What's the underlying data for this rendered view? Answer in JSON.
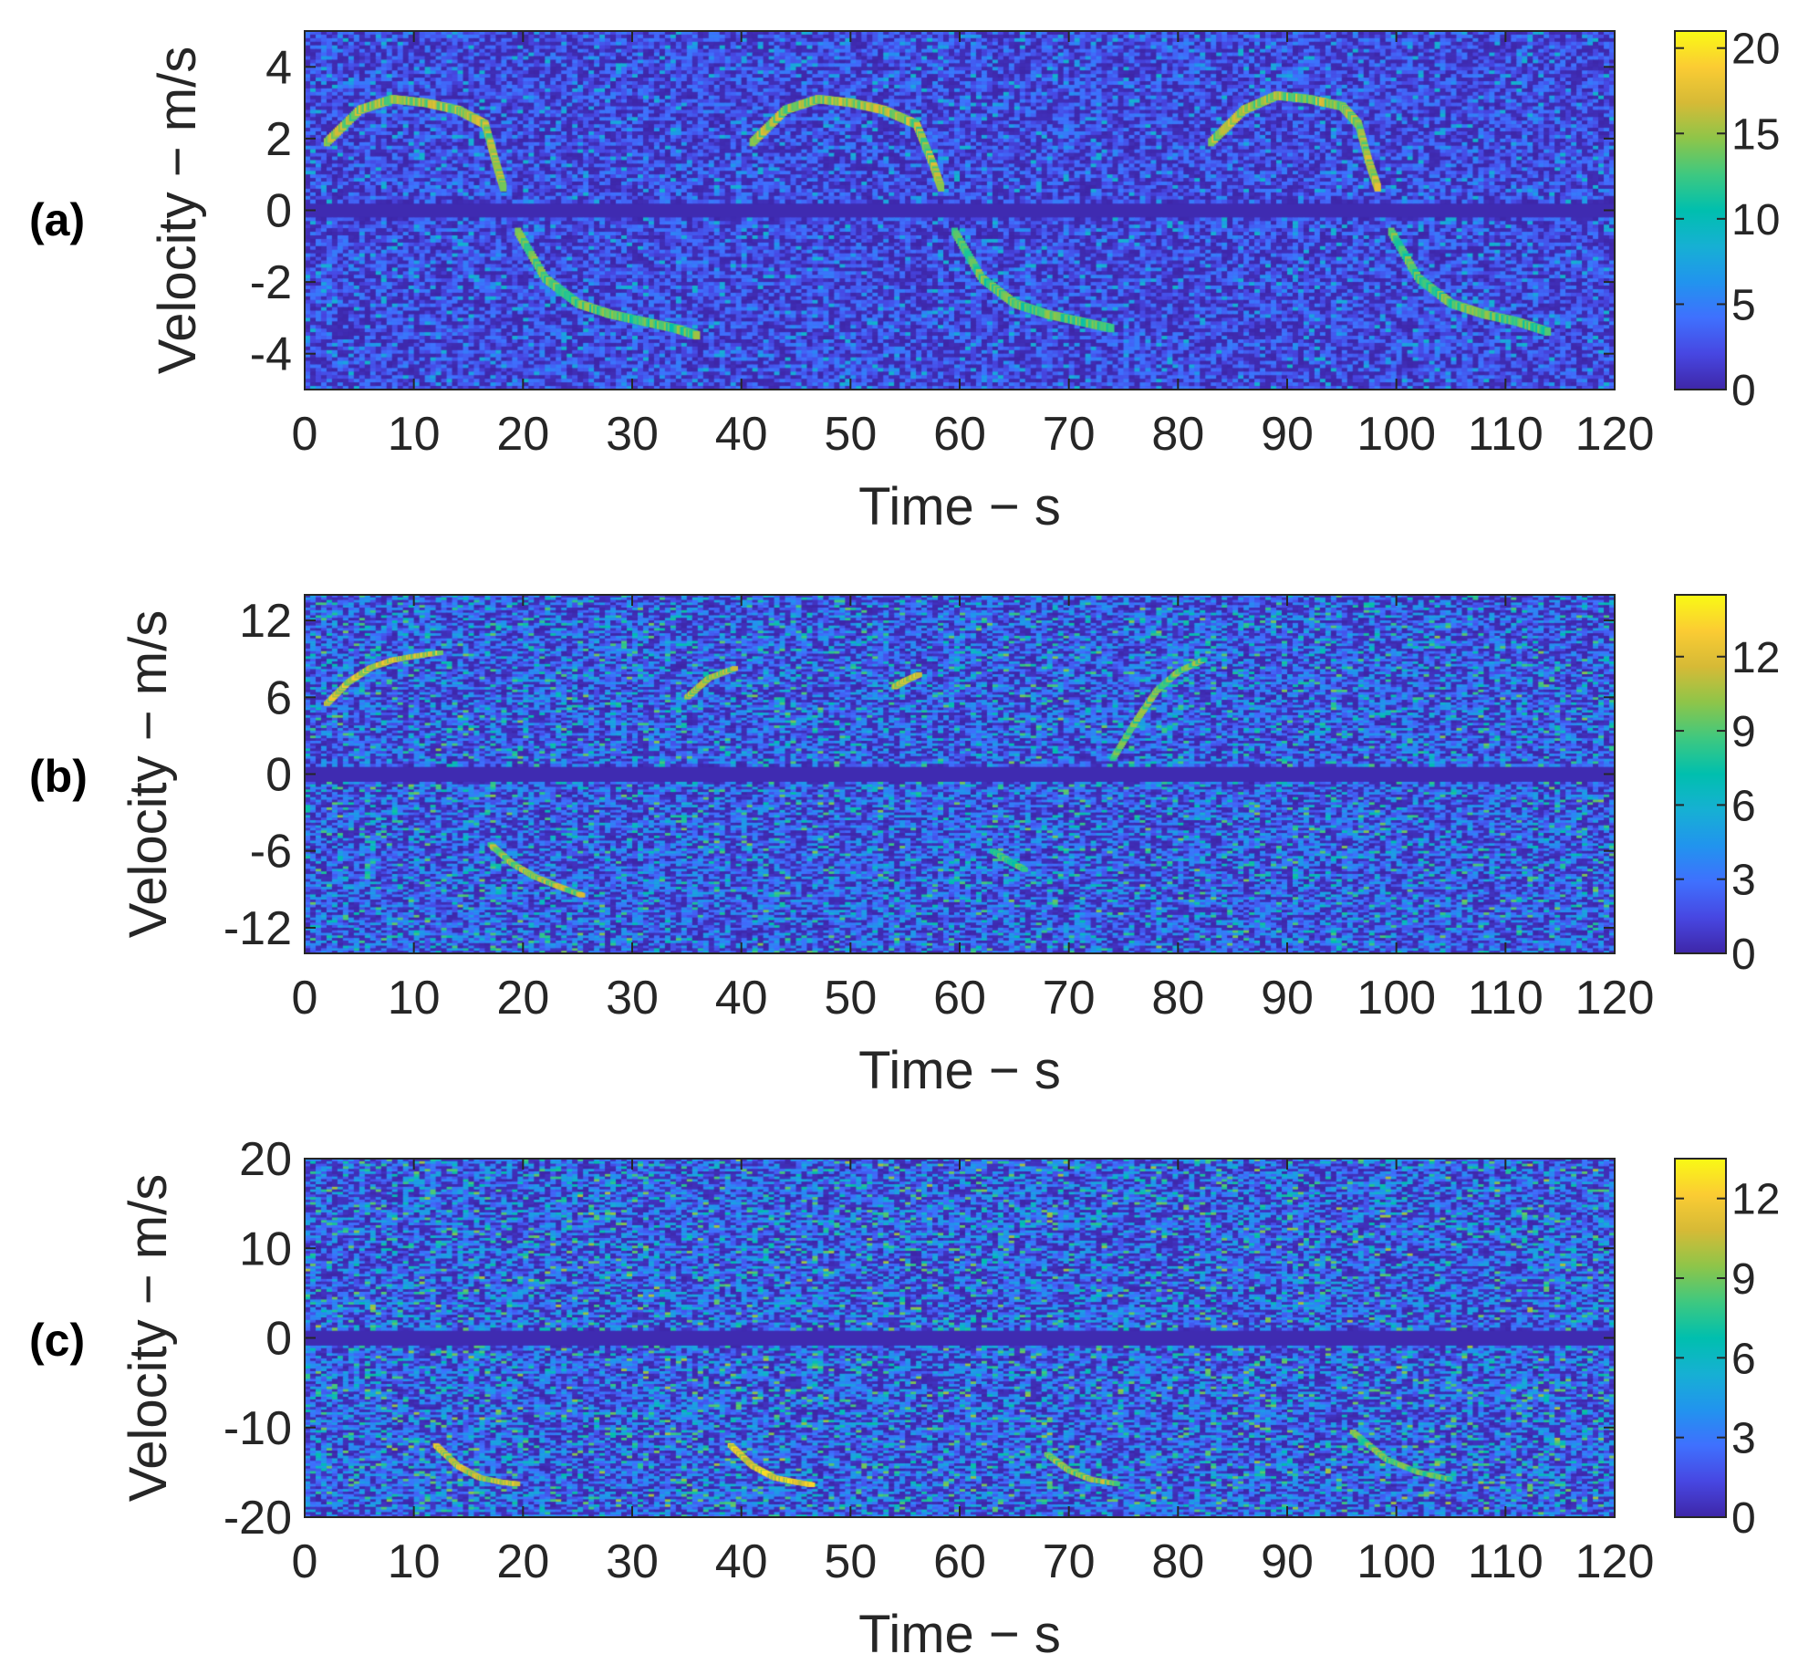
{
  "chart_data": [
    {
      "type": "heatmap",
      "panel_label": "(a)",
      "xlabel": "Time − s",
      "ylabel": "Velocity − m/s",
      "xlim": [
        0,
        120
      ],
      "ylim": [
        -5,
        5
      ],
      "xticks": [
        0,
        10,
        20,
        30,
        40,
        50,
        60,
        70,
        80,
        90,
        100,
        110,
        120
      ],
      "yticks": [
        -4,
        -2,
        0,
        2,
        4
      ],
      "colorbar": {
        "lim": [
          0,
          21
        ],
        "ticks": [
          0,
          5,
          10,
          15,
          20
        ]
      },
      "signal_tracks": [
        {
          "time": [
            2,
            5,
            8,
            11,
            14,
            16.5,
            17.5,
            18.2
          ],
          "velocity": [
            1.9,
            2.8,
            3.1,
            3.0,
            2.8,
            2.4,
            1.3,
            0.6
          ],
          "intensity": 16
        },
        {
          "time": [
            19.5,
            22,
            25,
            28,
            31,
            34,
            36
          ],
          "velocity": [
            -0.6,
            -1.9,
            -2.6,
            -2.9,
            -3.1,
            -3.3,
            -3.5
          ],
          "intensity": 14
        },
        {
          "time": [
            41,
            44,
            47,
            50,
            53,
            56,
            57.5,
            58.3
          ],
          "velocity": [
            1.9,
            2.8,
            3.1,
            3.0,
            2.8,
            2.4,
            1.3,
            0.6
          ],
          "intensity": 16
        },
        {
          "time": [
            59.5,
            62,
            65,
            68,
            71,
            74
          ],
          "velocity": [
            -0.6,
            -1.9,
            -2.6,
            -2.9,
            -3.1,
            -3.3
          ],
          "intensity": 14
        },
        {
          "time": [
            83,
            86,
            89,
            92,
            95,
            96.5,
            97.5,
            98.3
          ],
          "velocity": [
            1.9,
            2.8,
            3.2,
            3.1,
            2.9,
            2.4,
            1.3,
            0.6
          ],
          "intensity": 16
        },
        {
          "time": [
            99.5,
            102,
            105,
            108,
            111,
            114
          ],
          "velocity": [
            -0.6,
            -1.9,
            -2.6,
            -2.9,
            -3.1,
            -3.4
          ],
          "intensity": 14
        }
      ]
    },
    {
      "type": "heatmap",
      "panel_label": "(b)",
      "xlabel": "Time − s",
      "ylabel": "Velocity − m/s",
      "xlim": [
        0,
        120
      ],
      "ylim": [
        -14,
        14
      ],
      "xticks": [
        0,
        10,
        20,
        30,
        40,
        50,
        60,
        70,
        80,
        90,
        100,
        110,
        120
      ],
      "yticks": [
        -12,
        -6,
        0,
        6,
        12
      ],
      "colorbar": {
        "lim": [
          0,
          14.5
        ],
        "ticks": [
          0,
          3,
          6,
          9,
          12
        ]
      },
      "signal_tracks": [
        {
          "time": [
            2,
            4,
            6,
            8,
            10,
            12.5
          ],
          "velocity": [
            5.5,
            7.2,
            8.3,
            8.9,
            9.2,
            9.5
          ],
          "intensity": 12
        },
        {
          "time": [
            17,
            19,
            21,
            23,
            25.5
          ],
          "velocity": [
            -5.5,
            -7.0,
            -8.0,
            -8.7,
            -9.5
          ],
          "intensity": 11
        },
        {
          "time": [
            35,
            37,
            39.5
          ],
          "velocity": [
            6.0,
            7.5,
            8.3
          ],
          "intensity": 11
        },
        {
          "time": [
            54,
            55,
            56.3
          ],
          "velocity": [
            6.8,
            7.3,
            7.8
          ],
          "intensity": 12
        },
        {
          "time": [
            74,
            76,
            78,
            80,
            82.5
          ],
          "velocity": [
            1.2,
            4.0,
            6.5,
            8.0,
            9.0
          ],
          "intensity": 10
        },
        {
          "time": [
            63,
            64.5,
            66
          ],
          "velocity": [
            -6.0,
            -6.8,
            -7.5
          ],
          "intensity": 9
        }
      ]
    },
    {
      "type": "heatmap",
      "panel_label": "(c)",
      "xlabel": "Time − s",
      "ylabel": "Velocity − m/s",
      "xlim": [
        0,
        120
      ],
      "ylim": [
        -20,
        20
      ],
      "xticks": [
        0,
        10,
        20,
        30,
        40,
        50,
        60,
        70,
        80,
        90,
        100,
        110,
        120
      ],
      "yticks": [
        -20,
        -10,
        0,
        10,
        20
      ],
      "colorbar": {
        "lim": [
          0,
          13.5
        ],
        "ticks": [
          0,
          3,
          6,
          9,
          12
        ]
      },
      "signal_tracks": [
        {
          "time": [
            12,
            14,
            16,
            18,
            19.5
          ],
          "velocity": [
            -12.0,
            -14.3,
            -15.6,
            -16.1,
            -16.3
          ],
          "intensity": 11
        },
        {
          "time": [
            39,
            41,
            43,
            45,
            46.5
          ],
          "velocity": [
            -12.0,
            -14.3,
            -15.6,
            -16.1,
            -16.4
          ],
          "intensity": 12
        },
        {
          "time": [
            68,
            70,
            72,
            74.5
          ],
          "velocity": [
            -13.0,
            -14.8,
            -15.8,
            -16.3
          ],
          "intensity": 10
        },
        {
          "time": [
            96,
            99,
            102,
            105
          ],
          "velocity": [
            -10.5,
            -13.5,
            -15.0,
            -15.8
          ],
          "intensity": 9
        }
      ]
    }
  ]
}
